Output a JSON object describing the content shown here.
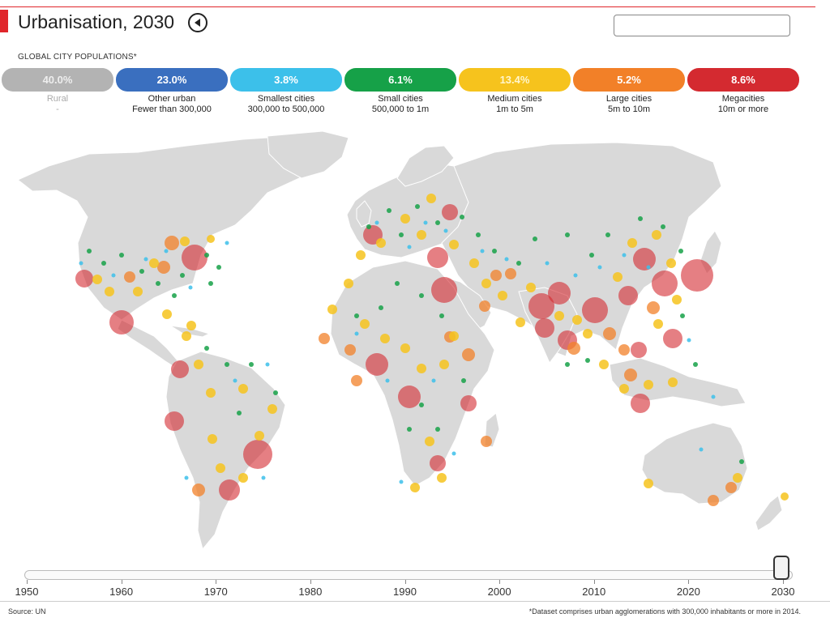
{
  "header": {
    "title": "Urbanisation, 2030",
    "back_button_icon": "back-arrow-icon",
    "search_value": ""
  },
  "legend": {
    "heading": "GLOBAL CITY POPULATIONS*",
    "items": [
      {
        "key": "rural",
        "value": "40.0%",
        "name": "Rural",
        "range": "-",
        "color": "#b3b3b3"
      },
      {
        "key": "other",
        "value": "23.0%",
        "name": "Other urban",
        "range": "Fewer than 300,000",
        "color": "#3a6fbf"
      },
      {
        "key": "smallest",
        "value": "3.8%",
        "name": "Smallest cities",
        "range": "300,000 to 500,000",
        "color": "#3cc0ea"
      },
      {
        "key": "small",
        "value": "6.1%",
        "name": "Small cities",
        "range": "500,000 to 1m",
        "color": "#16a148"
      },
      {
        "key": "medium",
        "value": "13.4%",
        "name": "Medium cities",
        "range": "1m to 5m",
        "color": "#f6c31d"
      },
      {
        "key": "large",
        "value": "5.2%",
        "name": "Large cities",
        "range": "5m to 10m",
        "color": "#f28028"
      },
      {
        "key": "mega",
        "value": "8.6%",
        "name": "Megacities",
        "range": "10m or more",
        "color": "#d42a30"
      }
    ]
  },
  "timeline": {
    "ticks": [
      "1950",
      "1960",
      "1970",
      "1980",
      "1990",
      "2000",
      "2010",
      "2020",
      "2030"
    ],
    "selected_year": 2030,
    "min_year": 1950,
    "max_year": 2030
  },
  "footer": {
    "source": "Source: UN",
    "footnote": "*Dataset comprises urban agglomerations with 300,000 inhabitants or more in 2014."
  }
}
